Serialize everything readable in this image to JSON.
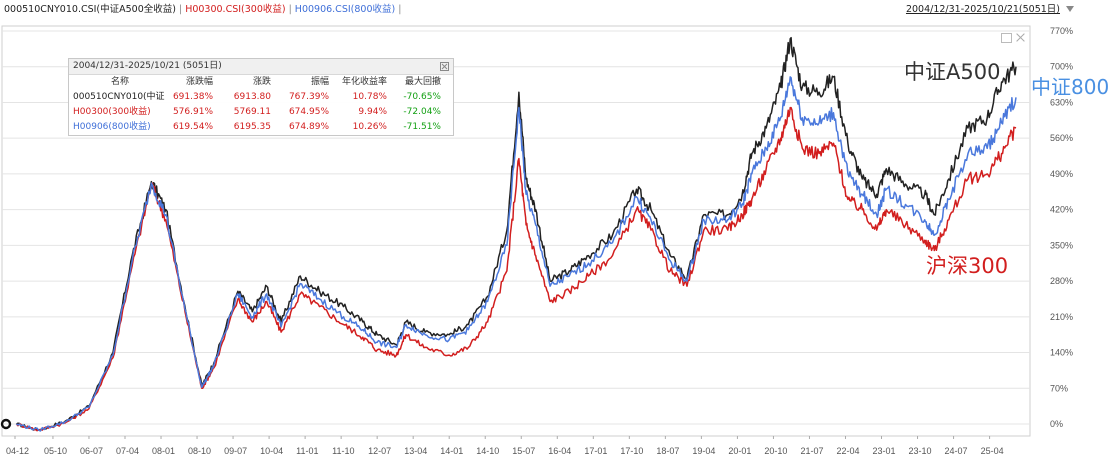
{
  "legend": {
    "series1": "000510CNY010.CSI(中证A500全收益)",
    "series2": "H00300.CSI(300收益)",
    "series3": "H00906.CSI(800收益)",
    "separator": "|",
    "range": "2004/12/31-2025/10/21(5051日)"
  },
  "stats": {
    "range": "2004/12/31-2025/10/21 (5051日)",
    "headers": [
      "名称",
      "涨跌幅",
      "涨跌",
      "振幅",
      "年化收益率",
      "最大回撤"
    ],
    "rows": [
      {
        "name": "000510CNY010(中证",
        "pct": "691.38%",
        "change": "6913.80",
        "amplitude": "767.39%",
        "annual": "10.78%",
        "drawdown": "-70.65%"
      },
      {
        "name": "H00300(300收益)",
        "pct": "576.91%",
        "change": "5769.11",
        "amplitude": "674.95%",
        "annual": "9.94%",
        "drawdown": "-72.04%"
      },
      {
        "name": "H00906(800收益)",
        "pct": "619.54%",
        "change": "6195.35",
        "amplitude": "674.89%",
        "annual": "10.26%",
        "drawdown": "-71.51%"
      }
    ]
  },
  "labels": {
    "a500": "中证A500",
    "s800": "中证800",
    "s300": "沪深300"
  },
  "colors": {
    "a500": "#222222",
    "s300": "#d21e1e",
    "s800": "#4a78dc",
    "grid": "#e4e4e4",
    "table_red": "#d21e1e",
    "table_blue": "#3f6fd8",
    "table_green": "#13a013"
  },
  "chart_data": {
    "type": "line",
    "ylim": [
      -0.15,
      7.7
    ],
    "y_ticks": [
      "0%",
      "70%",
      "140%",
      "210%",
      "280%",
      "350%",
      "420%",
      "490%",
      "560%",
      "630%",
      "700%",
      "770%"
    ],
    "y_tick_values": [
      0,
      0.7,
      1.4,
      2.1,
      2.8,
      3.5,
      4.2,
      4.9,
      5.6,
      6.3,
      7.0,
      7.7
    ],
    "x_ticks": [
      "04-12",
      "05-10",
      "06-07",
      "07-04",
      "08-01",
      "08-10",
      "09-07",
      "10-04",
      "11-01",
      "11-10",
      "12-07",
      "13-04",
      "14-01",
      "14-10",
      "15-07",
      "16-04",
      "17-01",
      "17-10",
      "18-07",
      "19-04",
      "20-01",
      "20-10",
      "21-07",
      "22-04",
      "23-01",
      "23-10",
      "24-07",
      "25-04"
    ],
    "x_tick_values": [
      2004.96,
      2005.75,
      2006.5,
      2007.25,
      2008.0,
      2008.75,
      2009.5,
      2010.25,
      2011.0,
      2011.75,
      2012.5,
      2013.25,
      2014.0,
      2014.75,
      2015.5,
      2016.25,
      2017.0,
      2017.75,
      2018.5,
      2019.25,
      2020.0,
      2020.75,
      2021.5,
      2022.25,
      2023.0,
      2023.75,
      2024.5,
      2025.25
    ],
    "xlim": [
      2004.96,
      2025.8
    ],
    "series": [
      {
        "name": "000510CNY010.CSI(中证A500全收益)",
        "key": "a500",
        "points": [
          [
            2004.99,
            0
          ],
          [
            2005.45,
            -0.12
          ],
          [
            2006.0,
            0.05
          ],
          [
            2006.5,
            0.35
          ],
          [
            2007.0,
            1.4
          ],
          [
            2007.4,
            3.3
          ],
          [
            2007.8,
            4.75
          ],
          [
            2008.1,
            4.2
          ],
          [
            2008.5,
            2.3
          ],
          [
            2008.85,
            0.75
          ],
          [
            2009.1,
            1.2
          ],
          [
            2009.6,
            2.6
          ],
          [
            2009.9,
            2.2
          ],
          [
            2010.2,
            2.7
          ],
          [
            2010.5,
            2.0
          ],
          [
            2010.9,
            2.9
          ],
          [
            2011.3,
            2.6
          ],
          [
            2011.8,
            2.3
          ],
          [
            2012.2,
            2.0
          ],
          [
            2012.5,
            1.75
          ],
          [
            2012.9,
            1.55
          ],
          [
            2013.1,
            2.0
          ],
          [
            2013.5,
            1.8
          ],
          [
            2014.0,
            1.75
          ],
          [
            2014.4,
            1.95
          ],
          [
            2014.8,
            2.5
          ],
          [
            2015.2,
            3.8
          ],
          [
            2015.45,
            6.5
          ],
          [
            2015.6,
            4.8
          ],
          [
            2015.8,
            4.2
          ],
          [
            2016.1,
            2.8
          ],
          [
            2016.5,
            3.0
          ],
          [
            2016.9,
            3.3
          ],
          [
            2017.4,
            3.7
          ],
          [
            2017.9,
            4.6
          ],
          [
            2018.2,
            4.2
          ],
          [
            2018.6,
            3.3
          ],
          [
            2018.95,
            2.85
          ],
          [
            2019.3,
            4.1
          ],
          [
            2019.8,
            4.1
          ],
          [
            2020.1,
            4.5
          ],
          [
            2020.3,
            5.3
          ],
          [
            2020.6,
            5.8
          ],
          [
            2020.9,
            6.6
          ],
          [
            2021.1,
            7.55
          ],
          [
            2021.35,
            6.6
          ],
          [
            2021.7,
            6.5
          ],
          [
            2022.0,
            6.8
          ],
          [
            2022.3,
            5.5
          ],
          [
            2022.6,
            4.8
          ],
          [
            2022.9,
            4.5
          ],
          [
            2023.1,
            5.0
          ],
          [
            2023.5,
            4.7
          ],
          [
            2023.9,
            4.5
          ],
          [
            2024.1,
            4.1
          ],
          [
            2024.4,
            4.8
          ],
          [
            2024.8,
            5.8
          ],
          [
            2025.2,
            6.0
          ],
          [
            2025.5,
            6.7
          ],
          [
            2025.8,
            7.0
          ]
        ]
      },
      {
        "name": "H00300.CSI(300收益)",
        "key": "s300",
        "points": [
          [
            2004.99,
            0
          ],
          [
            2005.45,
            -0.12
          ],
          [
            2006.0,
            0.02
          ],
          [
            2006.5,
            0.3
          ],
          [
            2007.0,
            1.3
          ],
          [
            2007.4,
            3.1
          ],
          [
            2007.8,
            4.7
          ],
          [
            2008.1,
            4.0
          ],
          [
            2008.5,
            2.2
          ],
          [
            2008.85,
            0.7
          ],
          [
            2009.1,
            1.1
          ],
          [
            2009.6,
            2.45
          ],
          [
            2009.9,
            2.0
          ],
          [
            2010.2,
            2.4
          ],
          [
            2010.5,
            1.8
          ],
          [
            2010.9,
            2.55
          ],
          [
            2011.3,
            2.3
          ],
          [
            2011.8,
            1.95
          ],
          [
            2012.2,
            1.7
          ],
          [
            2012.5,
            1.45
          ],
          [
            2012.9,
            1.35
          ],
          [
            2013.1,
            1.75
          ],
          [
            2013.5,
            1.5
          ],
          [
            2014.0,
            1.35
          ],
          [
            2014.4,
            1.5
          ],
          [
            2014.8,
            2.0
          ],
          [
            2015.2,
            3.0
          ],
          [
            2015.45,
            5.2
          ],
          [
            2015.6,
            3.9
          ],
          [
            2015.8,
            3.3
          ],
          [
            2016.1,
            2.4
          ],
          [
            2016.5,
            2.6
          ],
          [
            2016.9,
            2.9
          ],
          [
            2017.4,
            3.3
          ],
          [
            2017.9,
            4.2
          ],
          [
            2018.2,
            3.8
          ],
          [
            2018.6,
            3.0
          ],
          [
            2018.95,
            2.7
          ],
          [
            2019.3,
            3.8
          ],
          [
            2019.8,
            3.8
          ],
          [
            2020.1,
            4.1
          ],
          [
            2020.3,
            4.4
          ],
          [
            2020.6,
            5.0
          ],
          [
            2020.9,
            5.6
          ],
          [
            2021.1,
            6.2
          ],
          [
            2021.35,
            5.4
          ],
          [
            2021.7,
            5.3
          ],
          [
            2022.0,
            5.5
          ],
          [
            2022.3,
            4.4
          ],
          [
            2022.6,
            4.2
          ],
          [
            2022.9,
            3.8
          ],
          [
            2023.1,
            4.2
          ],
          [
            2023.5,
            3.9
          ],
          [
            2023.9,
            3.6
          ],
          [
            2024.1,
            3.4
          ],
          [
            2024.4,
            4.0
          ],
          [
            2024.8,
            4.8
          ],
          [
            2025.2,
            4.9
          ],
          [
            2025.5,
            5.3
          ],
          [
            2025.8,
            5.8
          ]
        ]
      },
      {
        "name": "H00906.CSI(800收益)",
        "key": "s800",
        "points": [
          [
            2004.99,
            0
          ],
          [
            2005.45,
            -0.12
          ],
          [
            2006.0,
            0.04
          ],
          [
            2006.5,
            0.33
          ],
          [
            2007.0,
            1.35
          ],
          [
            2007.4,
            3.2
          ],
          [
            2007.8,
            4.72
          ],
          [
            2008.1,
            4.1
          ],
          [
            2008.5,
            2.25
          ],
          [
            2008.85,
            0.72
          ],
          [
            2009.1,
            1.15
          ],
          [
            2009.6,
            2.55
          ],
          [
            2009.9,
            2.1
          ],
          [
            2010.2,
            2.55
          ],
          [
            2010.5,
            1.9
          ],
          [
            2010.9,
            2.75
          ],
          [
            2011.3,
            2.45
          ],
          [
            2011.8,
            2.1
          ],
          [
            2012.2,
            1.85
          ],
          [
            2012.5,
            1.6
          ],
          [
            2012.9,
            1.5
          ],
          [
            2013.1,
            1.95
          ],
          [
            2013.5,
            1.75
          ],
          [
            2014.0,
            1.65
          ],
          [
            2014.4,
            1.85
          ],
          [
            2014.8,
            2.4
          ],
          [
            2015.2,
            3.5
          ],
          [
            2015.45,
            6.2
          ],
          [
            2015.6,
            4.5
          ],
          [
            2015.8,
            3.9
          ],
          [
            2016.1,
            2.7
          ],
          [
            2016.5,
            2.9
          ],
          [
            2016.9,
            3.15
          ],
          [
            2017.4,
            3.55
          ],
          [
            2017.9,
            4.45
          ],
          [
            2018.2,
            4.0
          ],
          [
            2018.6,
            3.2
          ],
          [
            2018.95,
            2.8
          ],
          [
            2019.3,
            4.0
          ],
          [
            2019.8,
            4.0
          ],
          [
            2020.1,
            4.3
          ],
          [
            2020.3,
            4.9
          ],
          [
            2020.6,
            5.4
          ],
          [
            2020.9,
            6.0
          ],
          [
            2021.1,
            6.8
          ],
          [
            2021.35,
            6.0
          ],
          [
            2021.7,
            5.9
          ],
          [
            2022.0,
            6.1
          ],
          [
            2022.3,
            4.9
          ],
          [
            2022.6,
            4.5
          ],
          [
            2022.9,
            4.1
          ],
          [
            2023.1,
            4.6
          ],
          [
            2023.5,
            4.3
          ],
          [
            2023.9,
            4.0
          ],
          [
            2024.1,
            3.7
          ],
          [
            2024.4,
            4.4
          ],
          [
            2024.8,
            5.3
          ],
          [
            2025.2,
            5.4
          ],
          [
            2025.5,
            5.9
          ],
          [
            2025.8,
            6.4
          ]
        ]
      }
    ]
  }
}
